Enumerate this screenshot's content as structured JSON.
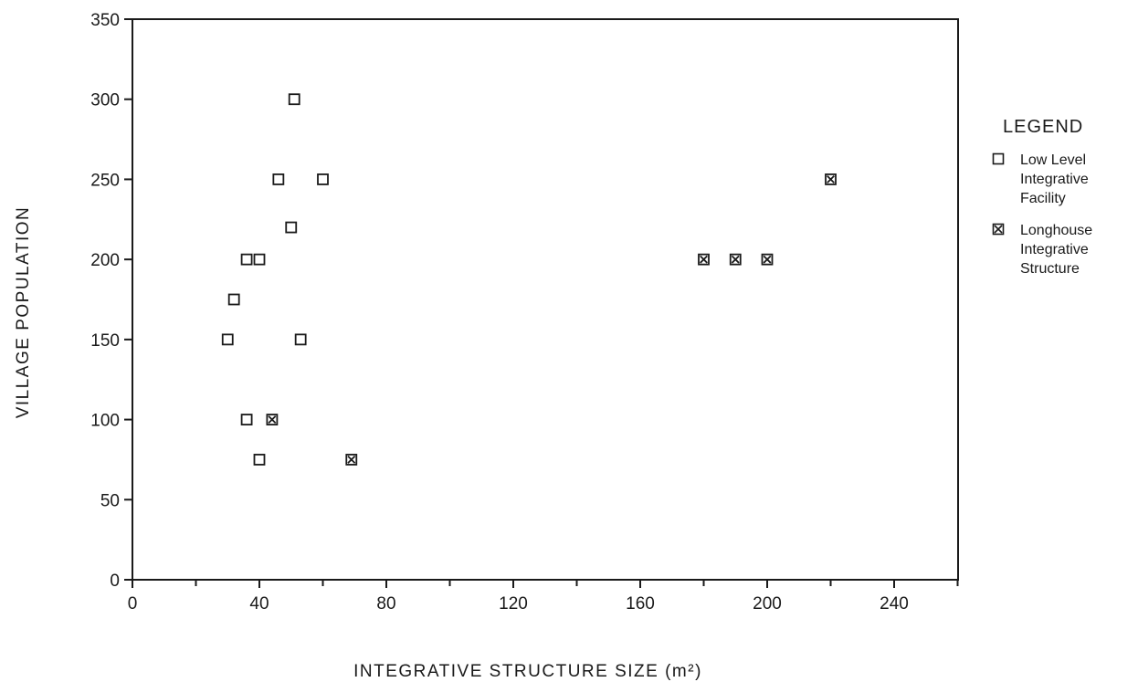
{
  "chart_data": {
    "type": "scatter",
    "title": "",
    "xlabel": "INTEGRATIVE STRUCTURE SIZE (m²)",
    "ylabel": "VILLAGE POPULATION",
    "xlim": [
      0,
      260
    ],
    "ylim": [
      0,
      350
    ],
    "x_ticks": [
      0,
      40,
      80,
      120,
      160,
      200,
      240
    ],
    "x_minor_ticks": [
      20,
      60,
      100,
      140,
      180,
      220,
      260
    ],
    "y_ticks": [
      0,
      50,
      100,
      150,
      200,
      250,
      300,
      350
    ],
    "grid": false,
    "legend_title": "LEGEND",
    "legend_position": "right",
    "series": [
      {
        "name": "Low Level Integrative Facility",
        "marker": "open-square",
        "points": [
          {
            "x": 51,
            "y": 300
          },
          {
            "x": 46,
            "y": 250
          },
          {
            "x": 60,
            "y": 250
          },
          {
            "x": 50,
            "y": 220
          },
          {
            "x": 36,
            "y": 200
          },
          {
            "x": 40,
            "y": 200
          },
          {
            "x": 32,
            "y": 175
          },
          {
            "x": 30,
            "y": 150
          },
          {
            "x": 53,
            "y": 150
          },
          {
            "x": 36,
            "y": 100
          },
          {
            "x": 40,
            "y": 75
          }
        ]
      },
      {
        "name": "Longhouse Integrative Structure",
        "marker": "crossed-square",
        "points": [
          {
            "x": 220,
            "y": 250
          },
          {
            "x": 180,
            "y": 200
          },
          {
            "x": 190,
            "y": 200
          },
          {
            "x": 200,
            "y": 200
          },
          {
            "x": 44,
            "y": 100
          },
          {
            "x": 69,
            "y": 75
          }
        ]
      }
    ]
  },
  "legend": {
    "title": "LEGEND",
    "items": [
      {
        "label": "Low Level\nIntegrative\nFacility",
        "marker": "open-square"
      },
      {
        "label": "Longhouse\nIntegrative\nStructure",
        "marker": "crossed-square"
      }
    ]
  },
  "colors": {
    "ink": "#1a1a1a",
    "background": "#ffffff"
  }
}
